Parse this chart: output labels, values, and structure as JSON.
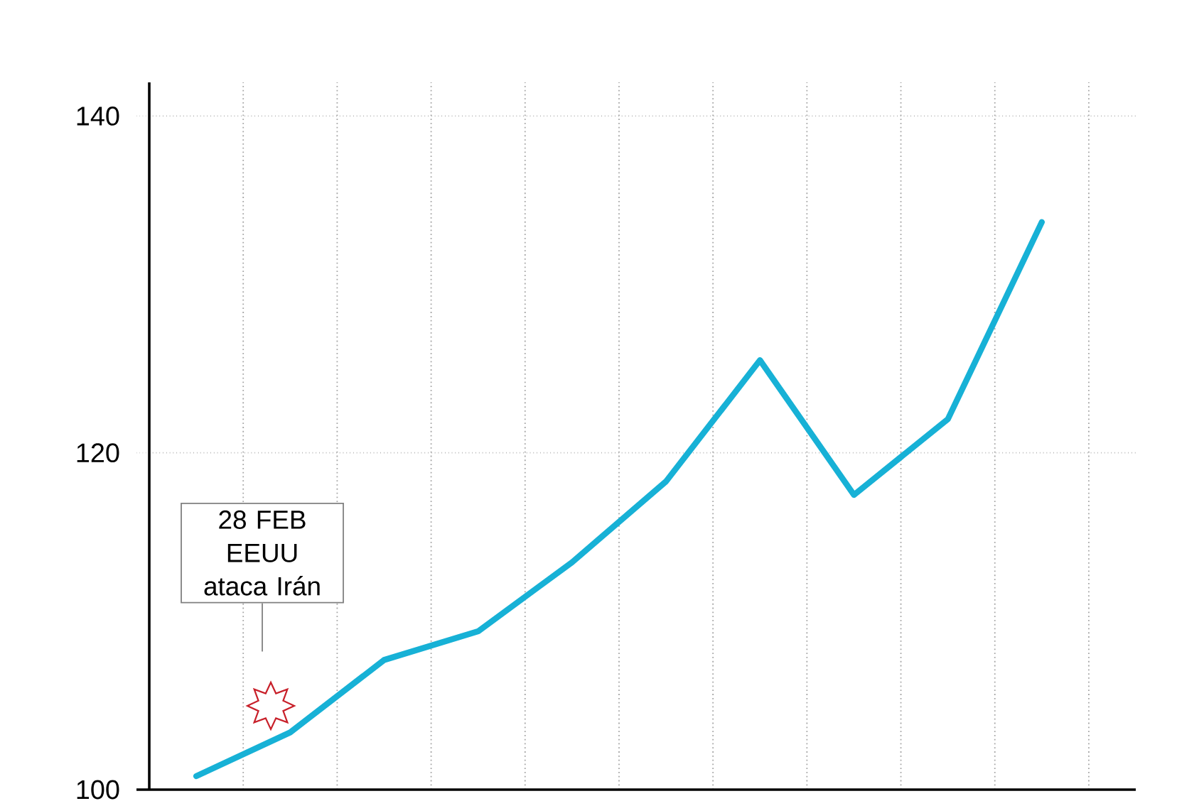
{
  "chart_data": {
    "type": "line",
    "categories": [
      null,
      null,
      null,
      null,
      null,
      null,
      null,
      null,
      null,
      null
    ],
    "values": [
      100.8,
      103.4,
      107.7,
      109.4,
      113.5,
      118.3,
      125.5,
      117.5,
      122.0,
      133.7
    ],
    "color": "#17b1d6",
    "line_style": "solid",
    "ylim": [
      100,
      142
    ],
    "yticks": [
      100,
      120,
      140
    ],
    "grid": true,
    "tick_labels": "y",
    "annotations": [
      "28 FEB EEUU ataca Irán"
    ]
  }
}
